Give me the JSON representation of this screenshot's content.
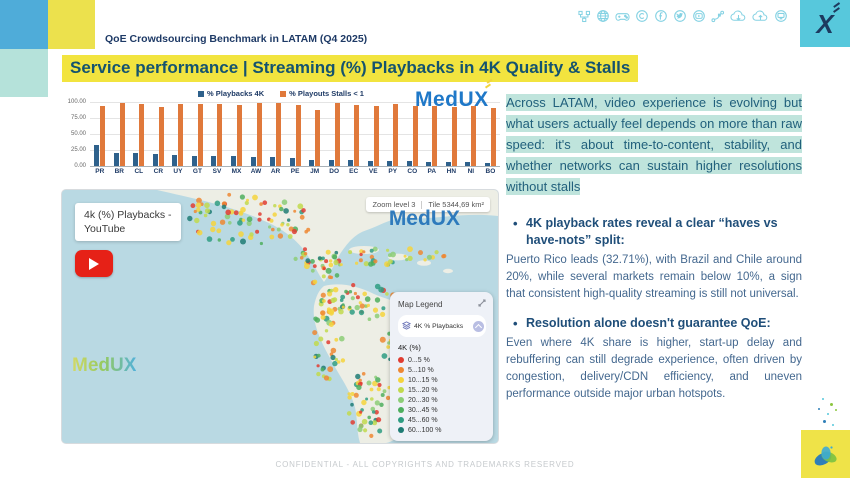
{
  "header": {
    "kicker": "QoE Crowdsourcing Benchmark in LATAM (Q4 2025)",
    "title": "Service performance | Streaming (%) Playbacks in 4K Quality & Stalls",
    "logo_x": "X",
    "social_icons": [
      "sitemap",
      "globe",
      "gamepad",
      "copyright",
      "facebook",
      "twitter",
      "youtube",
      "share-nodes",
      "cloud-download",
      "cloud-upload",
      "monitor"
    ]
  },
  "chart_data": {
    "type": "bar",
    "title": "",
    "categories": [
      "PR",
      "BR",
      "CL",
      "CR",
      "UY",
      "GT",
      "SV",
      "MX",
      "AW",
      "AR",
      "PE",
      "JM",
      "DO",
      "EC",
      "VE",
      "PY",
      "CO",
      "PA",
      "HN",
      "NI",
      "BO"
    ],
    "series": [
      {
        "name": "% Playbacks 4K",
        "color": "#2E618C",
        "values": [
          32.71,
          20,
          20,
          18.5,
          17,
          16,
          15.5,
          15,
          14.5,
          14,
          13,
          10,
          9.5,
          9,
          8.5,
          8,
          7.5,
          6.5,
          6,
          5.5,
          4
        ]
      },
      {
        "name": "% Playouts  Stalls  < 1",
        "color": "#E0793B",
        "values": [
          94,
          98,
          97,
          92.5,
          97,
          97,
          97,
          95.5,
          98,
          98,
          96,
          88,
          98,
          95,
          94.5,
          97,
          93.5,
          94.5,
          92.5,
          94.5,
          90
        ]
      }
    ],
    "ylim": [
      0,
      100
    ],
    "yticks": [
      "100.00",
      "75.00",
      "50.00",
      "25.00",
      "0.00"
    ],
    "xlabel": "",
    "ylabel": "",
    "legend_position": "top",
    "grid": true
  },
  "chart": {
    "logo": "MedUX"
  },
  "map": {
    "label_line1": "4k (%) Playbacks -",
    "label_line2": "YouTube",
    "zoom_badge": "Zoom level 3",
    "tile_badge": "Tile 5344,69 km²",
    "watermark": "MedUX",
    "legend": {
      "title": "Map Legend",
      "layer_label": "4K % Playbacks",
      "scale_title": "4K (%)",
      "items": [
        {
          "label": "0...5 %",
          "color": "#E03C31"
        },
        {
          "label": "5...10 %",
          "color": "#ED8733"
        },
        {
          "label": "10...15 %",
          "color": "#F5D33D"
        },
        {
          "label": "15...20 %",
          "color": "#C1D94E"
        },
        {
          "label": "20...30 %",
          "color": "#8CCD77"
        },
        {
          "label": "30...45 %",
          "color": "#4DAE5E"
        },
        {
          "label": "45...60 %",
          "color": "#2E9C82"
        },
        {
          "label": "60...100 %",
          "color": "#1E7B74"
        }
      ]
    }
  },
  "insights": {
    "intro": "Across LATAM, video experience is evolving but what users actually feel depends on more than raw speed: it's about time-to-content, stability, and whether networks can sustain higher resolutions without stalls",
    "bullets": [
      {
        "title": "4K playback rates reveal a clear “haves vs have-nots” split:",
        "body": "Puerto Rico leads (32.71%), with Brazil and Chile around 20%, while several markets remain below 10%, a sign that consistent high-quality streaming is still not universal."
      },
      {
        "title": "Resolution alone doesn't guarantee QoE:",
        "body": "Even where 4K share is higher, start-up delay and rebuffering can still degrade experience, often driven by congestion, delivery/CDN efficiency, and uneven performance outside major urban hotspots."
      }
    ]
  },
  "footer": {
    "text": "CONFIDENTIAL - ALL COPYRIGHTS AND TRADEMARKS RESERVED"
  }
}
